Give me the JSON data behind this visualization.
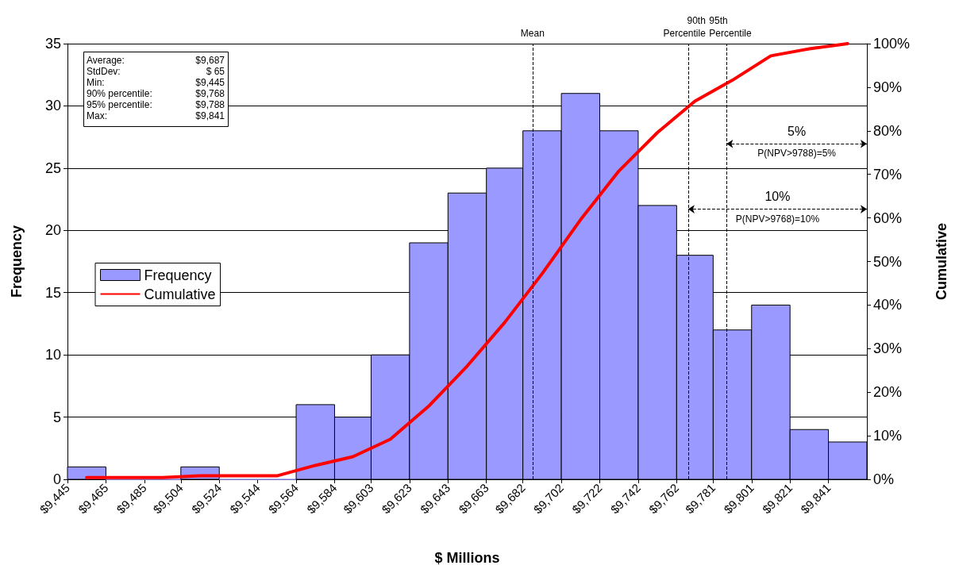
{
  "chart_data": {
    "type": "histogram",
    "xlabel": "$ Millions",
    "ylabel": "Frequency",
    "y2label": "Cumulative",
    "bins": [
      9445,
      9465,
      9485,
      9504,
      9524,
      9544,
      9564,
      9584,
      9603,
      9623,
      9643,
      9663,
      9682,
      9702,
      9722,
      9742,
      9762,
      9781,
      9801,
      9821,
      9841,
      9861
    ],
    "series": [
      {
        "name": "Frequency",
        "color": "#9999ff",
        "values": [
          1,
          0,
          0,
          1,
          0,
          0,
          6,
          5,
          10,
          19,
          23,
          25,
          28,
          31,
          28,
          22,
          18,
          12,
          14,
          4,
          3
        ]
      },
      {
        "name": "Cumulative",
        "type": "line",
        "axis": "y2",
        "color": "#ff0000",
        "x": [
          9455,
          9475,
          9494.5,
          9514,
          9534,
          9554,
          9574,
          9593.5,
          9613,
          9633,
          9653,
          9672.5,
          9692,
          9712,
          9732,
          9752,
          9771.5,
          9791,
          9811,
          9831,
          9851
        ],
        "values": [
          0.4,
          0.4,
          0.4,
          0.8,
          0.8,
          0.8,
          3.2,
          5.2,
          9.2,
          16.8,
          26,
          36,
          47.2,
          59.6,
          70.8,
          79.6,
          86.8,
          91.6,
          97.2,
          98.8,
          100
        ]
      }
    ],
    "xlim": [
      9445,
      9861
    ],
    "xticks": [
      {
        "value": 9445,
        "label": "$9,445"
      },
      {
        "value": 9465,
        "label": "$9,465"
      },
      {
        "value": 9485,
        "label": "$9,485"
      },
      {
        "value": 9504,
        "label": "$9,504"
      },
      {
        "value": 9524,
        "label": "$9,524"
      },
      {
        "value": 9544,
        "label": "$9,544"
      },
      {
        "value": 9564,
        "label": "$9,564"
      },
      {
        "value": 9584,
        "label": "$9,584"
      },
      {
        "value": 9603,
        "label": "$9,603"
      },
      {
        "value": 9623,
        "label": "$9,623"
      },
      {
        "value": 9643,
        "label": "$9,643"
      },
      {
        "value": 9663,
        "label": "$9,663"
      },
      {
        "value": 9682,
        "label": "$9,682"
      },
      {
        "value": 9702,
        "label": "$9,702"
      },
      {
        "value": 9722,
        "label": "$9,722"
      },
      {
        "value": 9742,
        "label": "$9,742"
      },
      {
        "value": 9762,
        "label": "$9,762"
      },
      {
        "value": 9781,
        "label": "$9,781"
      },
      {
        "value": 9801,
        "label": "$9,801"
      },
      {
        "value": 9821,
        "label": "$9,821"
      },
      {
        "value": 9841,
        "label": "$9,841"
      }
    ],
    "ylim": [
      0,
      35
    ],
    "yticks": [
      0,
      5,
      10,
      15,
      20,
      25,
      30,
      35
    ],
    "y2lim": [
      0,
      100
    ],
    "y2ticks": [
      {
        "value": 0,
        "label": "0%"
      },
      {
        "value": 10,
        "label": "10%"
      },
      {
        "value": 20,
        "label": "20%"
      },
      {
        "value": 30,
        "label": "30%"
      },
      {
        "value": 40,
        "label": "40%"
      },
      {
        "value": 50,
        "label": "50%"
      },
      {
        "value": 60,
        "label": "60%"
      },
      {
        "value": 70,
        "label": "70%"
      },
      {
        "value": 80,
        "label": "80%"
      },
      {
        "value": 90,
        "label": "90%"
      },
      {
        "value": 100,
        "label": "100%"
      }
    ],
    "grid": "y",
    "legend": "left",
    "line_style": "solid",
    "marker": "none",
    "ref_lines": [
      {
        "axis": "x",
        "value": 9687,
        "label": "Mean",
        "line_style": "dashed",
        "color": "#000000"
      },
      {
        "axis": "x",
        "value": 9768,
        "label": "90th\nPercentile",
        "line_style": "dashed",
        "color": "#000000"
      },
      {
        "axis": "x",
        "value": 9788,
        "label": "95th\nPercentile",
        "line_style": "dashed",
        "color": "#000000"
      }
    ],
    "annotations": [
      "Average: $9,687",
      "StdDev: $ 65",
      "Min: $9,445",
      "90% percentile: $9,768",
      "95% percentile: $9,788",
      "Max: $9,841",
      "5%",
      "P(NPV>9788)=5%",
      "10%",
      "P(NPV>9768)=10%"
    ]
  }
}
